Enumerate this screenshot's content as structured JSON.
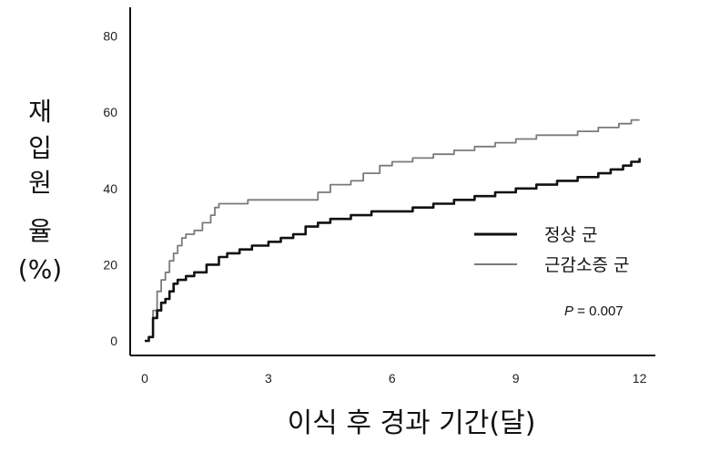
{
  "chart_data": {
    "type": "line",
    "xlabel": "이식 후 경과 기간(달)",
    "ylabel_lines": [
      "재",
      "입",
      "원",
      "율",
      "(%)"
    ],
    "xlim": [
      0,
      12.3
    ],
    "ylim": [
      -3,
      86
    ],
    "xticks": [
      0,
      3,
      6,
      9,
      12
    ],
    "yticks": [
      0,
      20,
      40,
      60,
      80
    ],
    "annotation": {
      "prefix": "P",
      "text": " = 0.007"
    },
    "series": [
      {
        "name": "정상 군",
        "color": "#111111",
        "x": [
          0,
          0.1,
          0.2,
          0.3,
          0.4,
          0.5,
          0.6,
          0.7,
          0.8,
          1.0,
          1.2,
          1.5,
          1.8,
          2.0,
          2.3,
          2.6,
          3.0,
          3.3,
          3.6,
          3.9,
          4.2,
          4.5,
          5.0,
          5.5,
          6.0,
          6.5,
          7.0,
          7.5,
          8.0,
          8.5,
          9.0,
          9.5,
          10.0,
          10.5,
          11.0,
          11.3,
          11.6,
          11.8,
          12.0
        ],
        "y": [
          0,
          1,
          6,
          8,
          10,
          11,
          13,
          15,
          16,
          17,
          18,
          20,
          22,
          23,
          24,
          25,
          26,
          27,
          28,
          30,
          31,
          32,
          33,
          34,
          34,
          35,
          36,
          37,
          38,
          39,
          40,
          41,
          42,
          43,
          44,
          45,
          46,
          47,
          48
        ]
      },
      {
        "name": "근감소증 군",
        "color": "#7a7a7a",
        "x": [
          0,
          0.1,
          0.2,
          0.3,
          0.4,
          0.5,
          0.6,
          0.7,
          0.8,
          0.9,
          1.0,
          1.2,
          1.4,
          1.6,
          1.7,
          1.8,
          2.0,
          2.5,
          3.0,
          3.5,
          4.0,
          4.2,
          4.5,
          5.0,
          5.3,
          5.7,
          6.0,
          6.5,
          7.0,
          7.5,
          8.0,
          8.5,
          9.0,
          9.5,
          10.0,
          10.5,
          11.0,
          11.5,
          11.8,
          12.0
        ],
        "y": [
          0,
          1,
          8,
          13,
          16,
          18,
          21,
          23,
          25,
          27,
          28,
          29,
          31,
          33,
          35,
          36,
          36,
          37,
          37,
          37,
          37,
          39,
          41,
          42,
          44,
          46,
          47,
          48,
          49,
          50,
          51,
          52,
          53,
          54,
          54,
          55,
          56,
          57,
          58,
          58
        ]
      }
    ]
  }
}
